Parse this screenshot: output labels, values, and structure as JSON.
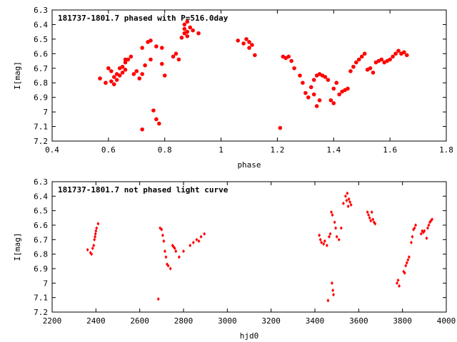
{
  "chart_data": [
    {
      "type": "scatter",
      "title": "181737-1801.7 phased with P=516.0day",
      "xlabel": "phase",
      "ylabel": "I[mag]",
      "xlim": [
        0.4,
        1.8
      ],
      "ylim": [
        6.3,
        7.2
      ],
      "y_inverted": true,
      "xticks": [
        "0.4",
        "0.6",
        "0.8",
        "1",
        "1.2",
        "1.4",
        "1.6",
        "1.8"
      ],
      "yticks": [
        "6.3",
        "6.4",
        "6.5",
        "6.6",
        "6.7",
        "6.8",
        "6.9",
        "7",
        "7.1",
        "7.2"
      ],
      "series": [
        {
          "color": "#ff0000",
          "marker": "filled-circle",
          "points": [
            [
              0.57,
              6.77
            ],
            [
              0.59,
              6.8
            ],
            [
              0.6,
              6.7
            ],
            [
              0.61,
              6.72
            ],
            [
              0.61,
              6.79
            ],
            [
              0.62,
              6.76
            ],
            [
              0.62,
              6.81
            ],
            [
              0.63,
              6.74
            ],
            [
              0.63,
              6.78
            ],
            [
              0.64,
              6.7
            ],
            [
              0.64,
              6.75
            ],
            [
              0.65,
              6.69
            ],
            [
              0.65,
              6.73
            ],
            [
              0.66,
              6.66
            ],
            [
              0.66,
              6.71
            ],
            [
              0.67,
              6.64
            ],
            [
              0.68,
              6.62
            ],
            [
              0.69,
              6.74
            ],
            [
              0.7,
              6.72
            ],
            [
              0.71,
              6.77
            ],
            [
              0.72,
              6.74
            ],
            [
              0.72,
              6.56
            ],
            [
              0.73,
              6.68
            ],
            [
              0.74,
              6.52
            ],
            [
              0.75,
              6.64
            ],
            [
              0.75,
              6.51
            ],
            [
              0.76,
              6.99
            ],
            [
              0.77,
              7.05
            ],
            [
              0.77,
              6.55
            ],
            [
              0.78,
              7.08
            ],
            [
              0.79,
              6.56
            ],
            [
              0.79,
              6.67
            ],
            [
              0.8,
              6.75
            ],
            [
              0.83,
              6.62
            ],
            [
              0.84,
              6.6
            ],
            [
              0.85,
              6.64
            ],
            [
              0.86,
              6.49
            ],
            [
              0.87,
              6.46
            ],
            [
              0.87,
              6.43
            ],
            [
              0.87,
              6.4
            ],
            [
              0.88,
              6.38
            ],
            [
              0.88,
              6.45
            ],
            [
              0.88,
              6.48
            ],
            [
              0.89,
              6.42
            ],
            [
              0.9,
              6.44
            ],
            [
              0.92,
              6.46
            ],
            [
              0.72,
              7.12
            ],
            [
              0.66,
              6.64
            ],
            [
              1.06,
              6.51
            ],
            [
              1.08,
              6.53
            ],
            [
              1.09,
              6.5
            ],
            [
              1.1,
              6.56
            ],
            [
              1.1,
              6.52
            ],
            [
              1.11,
              6.54
            ],
            [
              1.12,
              6.61
            ],
            [
              1.22,
              6.62
            ],
            [
              1.23,
              6.63
            ],
            [
              1.24,
              6.62
            ],
            [
              1.25,
              6.65
            ],
            [
              1.26,
              6.7
            ],
            [
              1.28,
              6.75
            ],
            [
              1.29,
              6.8
            ],
            [
              1.3,
              6.87
            ],
            [
              1.31,
              6.9
            ],
            [
              1.32,
              6.83
            ],
            [
              1.33,
              6.88
            ],
            [
              1.34,
              6.96
            ],
            [
              1.35,
              6.92
            ],
            [
              1.33,
              6.78
            ],
            [
              1.34,
              6.75
            ],
            [
              1.35,
              6.74
            ],
            [
              1.36,
              6.75
            ],
            [
              1.37,
              6.76
            ],
            [
              1.38,
              6.78
            ],
            [
              1.39,
              6.92
            ],
            [
              1.4,
              6.94
            ],
            [
              1.4,
              6.84
            ],
            [
              1.41,
              6.8
            ],
            [
              1.42,
              6.88
            ],
            [
              1.43,
              6.86
            ],
            [
              1.44,
              6.85
            ],
            [
              1.45,
              6.84
            ],
            [
              1.46,
              6.72
            ],
            [
              1.47,
              6.69
            ],
            [
              1.48,
              6.66
            ],
            [
              1.49,
              6.64
            ],
            [
              1.5,
              6.62
            ],
            [
              1.51,
              6.6
            ],
            [
              1.52,
              6.71
            ],
            [
              1.53,
              6.7
            ],
            [
              1.54,
              6.73
            ],
            [
              1.55,
              6.66
            ],
            [
              1.56,
              6.65
            ],
            [
              1.57,
              6.64
            ],
            [
              1.58,
              6.66
            ],
            [
              1.59,
              6.65
            ],
            [
              1.6,
              6.64
            ],
            [
              1.61,
              6.62
            ],
            [
              1.62,
              6.6
            ],
            [
              1.63,
              6.58
            ],
            [
              1.64,
              6.6
            ],
            [
              1.65,
              6.59
            ],
            [
              1.66,
              6.61
            ],
            [
              1.21,
              7.11
            ]
          ]
        }
      ]
    },
    {
      "type": "scatter",
      "title": "181737-1801.7 not phased light curve",
      "xlabel": "hjd0",
      "ylabel": "I[mag]",
      "xlim": [
        2200,
        4000
      ],
      "ylim": [
        6.3,
        7.2
      ],
      "y_inverted": true,
      "xticks": [
        "2200",
        "2400",
        "2600",
        "2800",
        "3000",
        "3200",
        "3400",
        "3600",
        "3800",
        "4000"
      ],
      "yticks": [
        "6.3",
        "6.4",
        "6.5",
        "6.6",
        "6.7",
        "6.8",
        "6.9",
        "7",
        "7.1",
        "7.2"
      ],
      "series": [
        {
          "color": "#ff0000",
          "marker": "small-diamond",
          "points": [
            [
              2362,
              6.77
            ],
            [
              2375,
              6.79
            ],
            [
              2380,
              6.8
            ],
            [
              2385,
              6.76
            ],
            [
              2390,
              6.74
            ],
            [
              2393,
              6.7
            ],
            [
              2396,
              6.68
            ],
            [
              2398,
              6.66
            ],
            [
              2400,
              6.64
            ],
            [
              2403,
              6.62
            ],
            [
              2410,
              6.59
            ],
            [
              2685,
              7.11
            ],
            [
              2693,
              6.62
            ],
            [
              2700,
              6.63
            ],
            [
              2705,
              6.67
            ],
            [
              2710,
              6.71
            ],
            [
              2715,
              6.78
            ],
            [
              2720,
              6.82
            ],
            [
              2725,
              6.87
            ],
            [
              2730,
              6.88
            ],
            [
              2740,
              6.9
            ],
            [
              2750,
              6.74
            ],
            [
              2755,
              6.75
            ],
            [
              2760,
              6.76
            ],
            [
              2765,
              6.78
            ],
            [
              2780,
              6.82
            ],
            [
              2800,
              6.78
            ],
            [
              2830,
              6.74
            ],
            [
              2845,
              6.72
            ],
            [
              2860,
              6.7
            ],
            [
              2870,
              6.71
            ],
            [
              2880,
              6.68
            ],
            [
              2895,
              6.66
            ],
            [
              3420,
              6.67
            ],
            [
              3425,
              6.7
            ],
            [
              3430,
              6.72
            ],
            [
              3440,
              6.73
            ],
            [
              3445,
              6.71
            ],
            [
              3455,
              6.74
            ],
            [
              3460,
              7.12
            ],
            [
              3465,
              6.68
            ],
            [
              3470,
              6.66
            ],
            [
              3475,
              6.51
            ],
            [
              3478,
              7.0
            ],
            [
              3480,
              6.53
            ],
            [
              3482,
              7.05
            ],
            [
              3485,
              7.08
            ],
            [
              3490,
              6.58
            ],
            [
              3495,
              6.62
            ],
            [
              3500,
              6.68
            ],
            [
              3510,
              6.7
            ],
            [
              3520,
              6.62
            ],
            [
              3530,
              6.45
            ],
            [
              3540,
              6.4
            ],
            [
              3545,
              6.43
            ],
            [
              3548,
              6.38
            ],
            [
              3552,
              6.47
            ],
            [
              3555,
              6.42
            ],
            [
              3560,
              6.44
            ],
            [
              3565,
              6.46
            ],
            [
              3640,
              6.51
            ],
            [
              3645,
              6.53
            ],
            [
              3650,
              6.55
            ],
            [
              3655,
              6.57
            ],
            [
              3660,
              6.51
            ],
            [
              3665,
              6.56
            ],
            [
              3670,
              6.58
            ],
            [
              3675,
              6.59
            ],
            [
              3775,
              7.0
            ],
            [
              3780,
              6.98
            ],
            [
              3785,
              7.02
            ],
            [
              3805,
              6.92
            ],
            [
              3810,
              6.93
            ],
            [
              3815,
              6.88
            ],
            [
              3820,
              6.86
            ],
            [
              3825,
              6.84
            ],
            [
              3830,
              6.82
            ],
            [
              3840,
              6.72
            ],
            [
              3845,
              6.68
            ],
            [
              3850,
              6.63
            ],
            [
              3855,
              6.62
            ],
            [
              3860,
              6.6
            ],
            [
              3885,
              6.66
            ],
            [
              3890,
              6.64
            ],
            [
              3895,
              6.65
            ],
            [
              3900,
              6.64
            ],
            [
              3910,
              6.69
            ],
            [
              3915,
              6.62
            ],
            [
              3920,
              6.6
            ],
            [
              3925,
              6.58
            ],
            [
              3930,
              6.57
            ],
            [
              3935,
              6.56
            ]
          ]
        }
      ]
    }
  ]
}
